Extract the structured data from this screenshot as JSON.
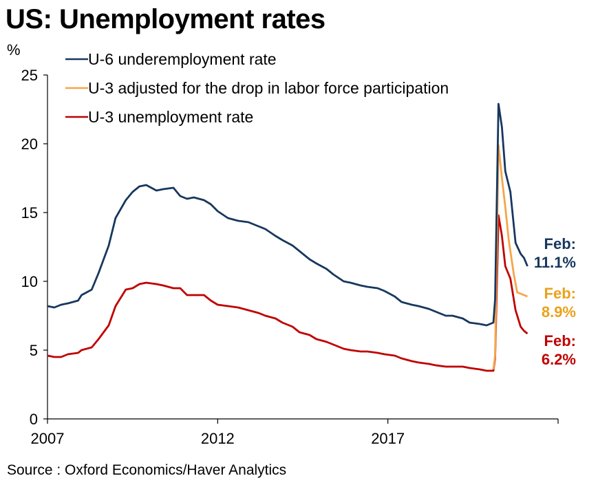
{
  "title": "US: Unemployment rates",
  "source": "Source : Oxford Economics/Haver Analytics",
  "chart_data": {
    "type": "line",
    "title": "US: Unemployment rates",
    "ylabel": "%",
    "xlabel": "",
    "ylim": [
      0,
      25
    ],
    "xlim": [
      2007.0,
      2022.0
    ],
    "yticks": [
      0,
      5,
      10,
      15,
      20,
      25
    ],
    "xticks": [
      2007,
      2012,
      2017
    ],
    "grid": false,
    "legend_position": "top-left",
    "series": [
      {
        "name": "U-6 underemployment rate",
        "color": "#17375e",
        "x": [
          2007.0,
          2007.2,
          2007.4,
          2007.6,
          2007.9,
          2008.0,
          2008.3,
          2008.5,
          2008.8,
          2009.0,
          2009.3,
          2009.5,
          2009.7,
          2009.9,
          2010.2,
          2010.4,
          2010.7,
          2010.9,
          2011.1,
          2011.3,
          2011.6,
          2011.8,
          2012.0,
          2012.3,
          2012.6,
          2012.9,
          2013.2,
          2013.4,
          2013.7,
          2013.9,
          2014.2,
          2014.4,
          2014.7,
          2014.9,
          2015.2,
          2015.4,
          2015.7,
          2015.9,
          2016.2,
          2016.4,
          2016.7,
          2016.9,
          2017.2,
          2017.4,
          2017.7,
          2017.9,
          2018.2,
          2018.4,
          2018.7,
          2018.9,
          2019.2,
          2019.4,
          2019.7,
          2019.9,
          2020.1,
          2020.15,
          2020.25,
          2020.35,
          2020.45,
          2020.6,
          2020.75,
          2020.9,
          2021.0,
          2021.1
        ],
        "values": [
          8.2,
          8.1,
          8.3,
          8.4,
          8.6,
          9.0,
          9.4,
          10.6,
          12.6,
          14.6,
          15.9,
          16.5,
          16.9,
          17.0,
          16.6,
          16.7,
          16.8,
          16.2,
          16.0,
          16.1,
          15.9,
          15.6,
          15.1,
          14.6,
          14.4,
          14.3,
          14.0,
          13.8,
          13.3,
          13.0,
          12.6,
          12.2,
          11.6,
          11.3,
          10.9,
          10.5,
          10.0,
          9.9,
          9.7,
          9.6,
          9.5,
          9.3,
          8.9,
          8.5,
          8.3,
          8.2,
          8.0,
          7.8,
          7.5,
          7.5,
          7.3,
          7.0,
          6.9,
          6.8,
          7.0,
          8.7,
          22.9,
          21.2,
          18.0,
          16.5,
          12.8,
          12.0,
          11.7,
          11.1
        ]
      },
      {
        "name": "U-3 adjusted for the drop in labor force participation",
        "color": "#f5a54a",
        "x": [
          2020.1,
          2020.15,
          2020.25,
          2020.35,
          2020.45,
          2020.55,
          2020.7,
          2020.8,
          2020.9,
          2021.0,
          2021.1
        ],
        "values": [
          3.6,
          4.6,
          19.9,
          17.5,
          15.4,
          13.0,
          10.5,
          9.2,
          9.1,
          9.0,
          8.9
        ]
      },
      {
        "name": "U-3 unemployment rate",
        "color": "#c00000",
        "x": [
          2007.0,
          2007.2,
          2007.4,
          2007.6,
          2007.9,
          2008.0,
          2008.3,
          2008.5,
          2008.8,
          2009.0,
          2009.3,
          2009.5,
          2009.7,
          2009.9,
          2010.2,
          2010.4,
          2010.7,
          2010.9,
          2011.1,
          2011.3,
          2011.6,
          2011.8,
          2012.0,
          2012.3,
          2012.6,
          2012.9,
          2013.2,
          2013.4,
          2013.7,
          2013.9,
          2014.2,
          2014.4,
          2014.7,
          2014.9,
          2015.2,
          2015.4,
          2015.7,
          2015.9,
          2016.2,
          2016.4,
          2016.7,
          2016.9,
          2017.2,
          2017.4,
          2017.7,
          2017.9,
          2018.2,
          2018.4,
          2018.7,
          2018.9,
          2019.2,
          2019.4,
          2019.7,
          2019.9,
          2020.1,
          2020.15,
          2020.25,
          2020.35,
          2020.45,
          2020.6,
          2020.75,
          2020.9,
          2021.0,
          2021.1
        ],
        "values": [
          4.6,
          4.5,
          4.5,
          4.7,
          4.8,
          5.0,
          5.2,
          5.8,
          6.8,
          8.2,
          9.4,
          9.5,
          9.8,
          9.9,
          9.8,
          9.7,
          9.5,
          9.5,
          9.0,
          9.0,
          9.0,
          8.6,
          8.3,
          8.2,
          8.1,
          7.9,
          7.7,
          7.5,
          7.3,
          7.0,
          6.7,
          6.3,
          6.1,
          5.8,
          5.6,
          5.4,
          5.1,
          5.0,
          4.9,
          4.9,
          4.8,
          4.7,
          4.6,
          4.4,
          4.2,
          4.1,
          4.0,
          3.9,
          3.8,
          3.8,
          3.8,
          3.7,
          3.6,
          3.5,
          3.5,
          4.4,
          14.8,
          13.3,
          11.1,
          10.2,
          7.9,
          6.7,
          6.4,
          6.2
        ]
      }
    ],
    "end_labels": [
      {
        "series": "U-6 underemployment rate",
        "line1": "Feb:",
        "line2": "11.1%",
        "color": "#17375e"
      },
      {
        "series": "U-3 adjusted for the drop in labor force participation",
        "line1": "Feb:",
        "line2": "8.9%",
        "color": "#eaa21a"
      },
      {
        "series": "U-3 unemployment rate",
        "line1": "Feb:",
        "line2": "6.2%",
        "color": "#c00000"
      }
    ]
  }
}
